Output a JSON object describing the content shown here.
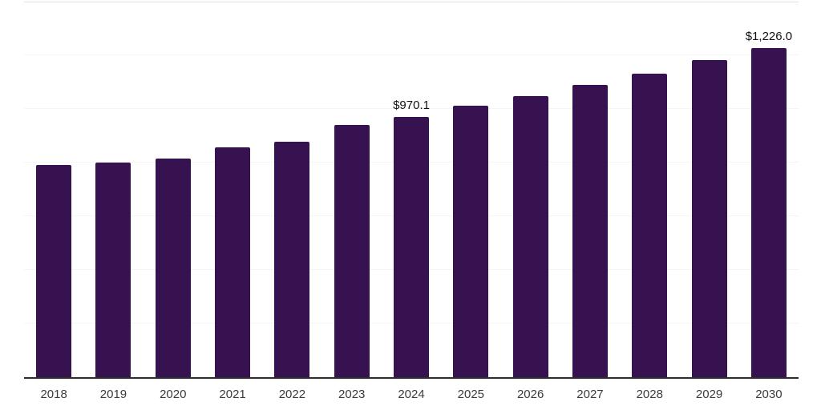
{
  "chart_data": {
    "type": "bar",
    "title": "",
    "xlabel": "",
    "ylabel": "",
    "categories": [
      "2018",
      "2019",
      "2020",
      "2021",
      "2022",
      "2023",
      "2024",
      "2025",
      "2026",
      "2027",
      "2028",
      "2029",
      "2030"
    ],
    "values": [
      792,
      801,
      815,
      856,
      879,
      939,
      970.1,
      1011,
      1048,
      1090,
      1131,
      1182,
      1226
    ],
    "value_labels": [
      null,
      null,
      null,
      null,
      null,
      null,
      "$970.1",
      null,
      null,
      null,
      null,
      null,
      "$1,226.0"
    ],
    "ylim": [
      0,
      1400
    ],
    "gridline_step": 200,
    "grid": true,
    "y_axis_tick_labels_visible": false,
    "legend": null,
    "colors": {
      "bar": "#361350",
      "axis_line": "#2e2e2e",
      "gridline": "#f5f5f5",
      "top_border": "#e2e2e2",
      "x_label_text": "#3b3b3b",
      "value_label_text": "#111111",
      "background": "#ffffff"
    }
  }
}
